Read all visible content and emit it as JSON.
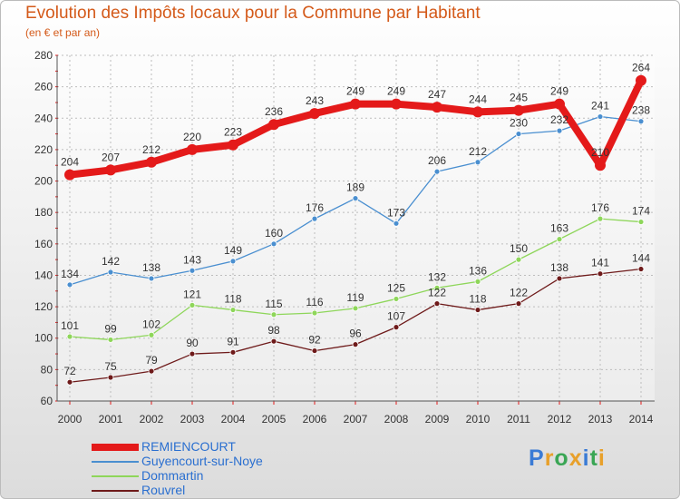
{
  "title": "Evolution des Impôts locaux pour la Commune par Habitant",
  "subtitle": "(en € et par an)",
  "brand": {
    "letters": [
      "P",
      "r",
      "o",
      "x",
      "i",
      "t",
      "i"
    ],
    "colors": [
      "#3a7bd5",
      "#e8a02a",
      "#3aa655",
      "#e8a02a",
      "#3a7bd5",
      "#3aa655",
      "#e8a02a"
    ]
  },
  "chart_data": {
    "type": "line",
    "title": "Evolution des Impôts locaux pour la Commune par Habitant",
    "subtitle": "(en € et par an)",
    "x": [
      "2000",
      "2001",
      "2002",
      "2003",
      "2004",
      "2005",
      "2006",
      "2007",
      "2008",
      "2009",
      "2010",
      "2011",
      "2012",
      "2013",
      "2014"
    ],
    "ylim": [
      60,
      280
    ],
    "yticks": [
      60,
      80,
      100,
      120,
      140,
      160,
      180,
      200,
      220,
      240,
      260,
      280
    ],
    "grid": true,
    "legend_position": "bottom-left",
    "series": [
      {
        "name": "REMIENCOURT",
        "color": "#e41a1a",
        "width": "thick",
        "values": [
          204,
          207,
          212,
          220,
          223,
          236,
          243,
          249,
          249,
          247,
          244,
          245,
          249,
          210,
          264
        ],
        "labels": [
          "204",
          "207",
          "212",
          "220",
          "223",
          "236",
          "243",
          "249",
          "249",
          "247",
          "244",
          "245",
          "249",
          "210",
          "264"
        ]
      },
      {
        "name": "Guyencourt-sur-Noye",
        "color": "#4a8fd0",
        "width": "thin",
        "values": [
          134,
          142,
          138,
          143,
          149,
          160,
          176,
          189,
          173,
          206,
          212,
          230,
          232,
          241,
          238
        ],
        "labels": [
          "134",
          "142",
          "138",
          "143",
          "149",
          "160",
          "176",
          "189",
          "173",
          "206",
          "212",
          "230",
          "232",
          "241",
          "238"
        ]
      },
      {
        "name": "Dommartin",
        "color": "#8ed65a",
        "width": "thin",
        "values": [
          101,
          99,
          102,
          121,
          118,
          115,
          116,
          119,
          125,
          132,
          136,
          150,
          163,
          176,
          174
        ],
        "labels": [
          "101",
          "99",
          "102",
          "121",
          "118",
          "115",
          "116",
          "119",
          "125",
          "132",
          "136",
          "150",
          "163",
          "176",
          "174"
        ]
      },
      {
        "name": "Rouvrel",
        "color": "#6e1a1a",
        "width": "thin",
        "values": [
          72,
          75,
          79,
          90,
          91,
          98,
          92,
          96,
          107,
          122,
          118,
          122,
          138,
          141,
          144
        ],
        "labels": [
          "72",
          "75",
          "79",
          "90",
          "91",
          "98",
          "92",
          "96",
          "107",
          "122",
          "118",
          "122",
          "138",
          "141",
          "144"
        ]
      }
    ]
  }
}
